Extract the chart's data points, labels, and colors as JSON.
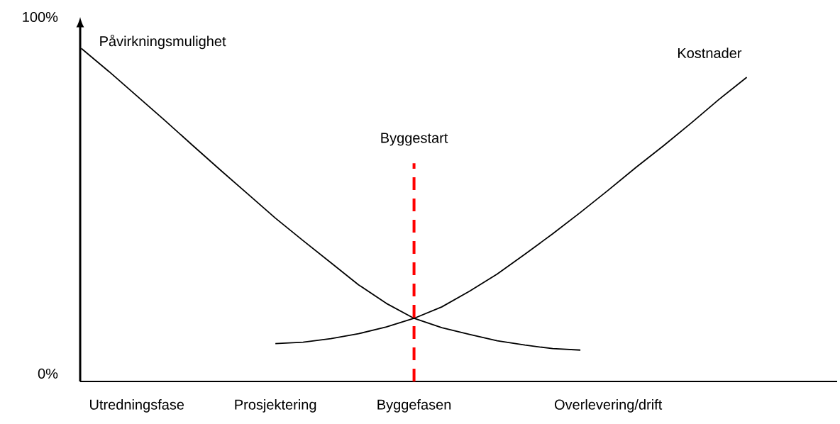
{
  "chart_data": {
    "type": "line",
    "marker": "none",
    "categories": [
      null,
      null,
      "Utredningsfase",
      null,
      null,
      null,
      null,
      "Prosjektering",
      null,
      null,
      null,
      null,
      "Byggefasen",
      null,
      null,
      null,
      null,
      null,
      null,
      "Overlevering/drift",
      null,
      null,
      null,
      null,
      null,
      null,
      null,
      null
    ],
    "ylim": [
      -2.2,
      100
    ],
    "yticks": [
      {
        "value": 0,
        "label": "0%"
      },
      {
        "value": 100,
        "label": "100%"
      }
    ],
    "series": [
      {
        "name": "Påvirkningsmulighet",
        "color": "#000000",
        "values": [
          91.2,
          84.7,
          77.9,
          71.1,
          64.1,
          57.2,
          50.4,
          43.6,
          37.3,
          31.1,
          24.9,
          19.7,
          15.5,
          12.9,
          11.0,
          9.2,
          8.0,
          7.0,
          6.6,
          null,
          null,
          null,
          null,
          null,
          null,
          null,
          null,
          null
        ]
      },
      {
        "name": "Kostnader",
        "color": "#000000",
        "values": [
          null,
          null,
          null,
          null,
          null,
          null,
          null,
          8.4,
          8.8,
          9.8,
          11.2,
          13.1,
          15.5,
          18.7,
          23.1,
          27.9,
          33.5,
          39.2,
          45.2,
          51.4,
          57.8,
          63.9,
          70.3,
          76.9,
          83.1,
          null,
          null,
          null
        ]
      }
    ],
    "ref_lines": [
      {
        "axis": "x",
        "value": "Byggefasen",
        "label": "Byggestart",
        "color": "#ff0000",
        "line_style": "dashed"
      }
    ]
  }
}
